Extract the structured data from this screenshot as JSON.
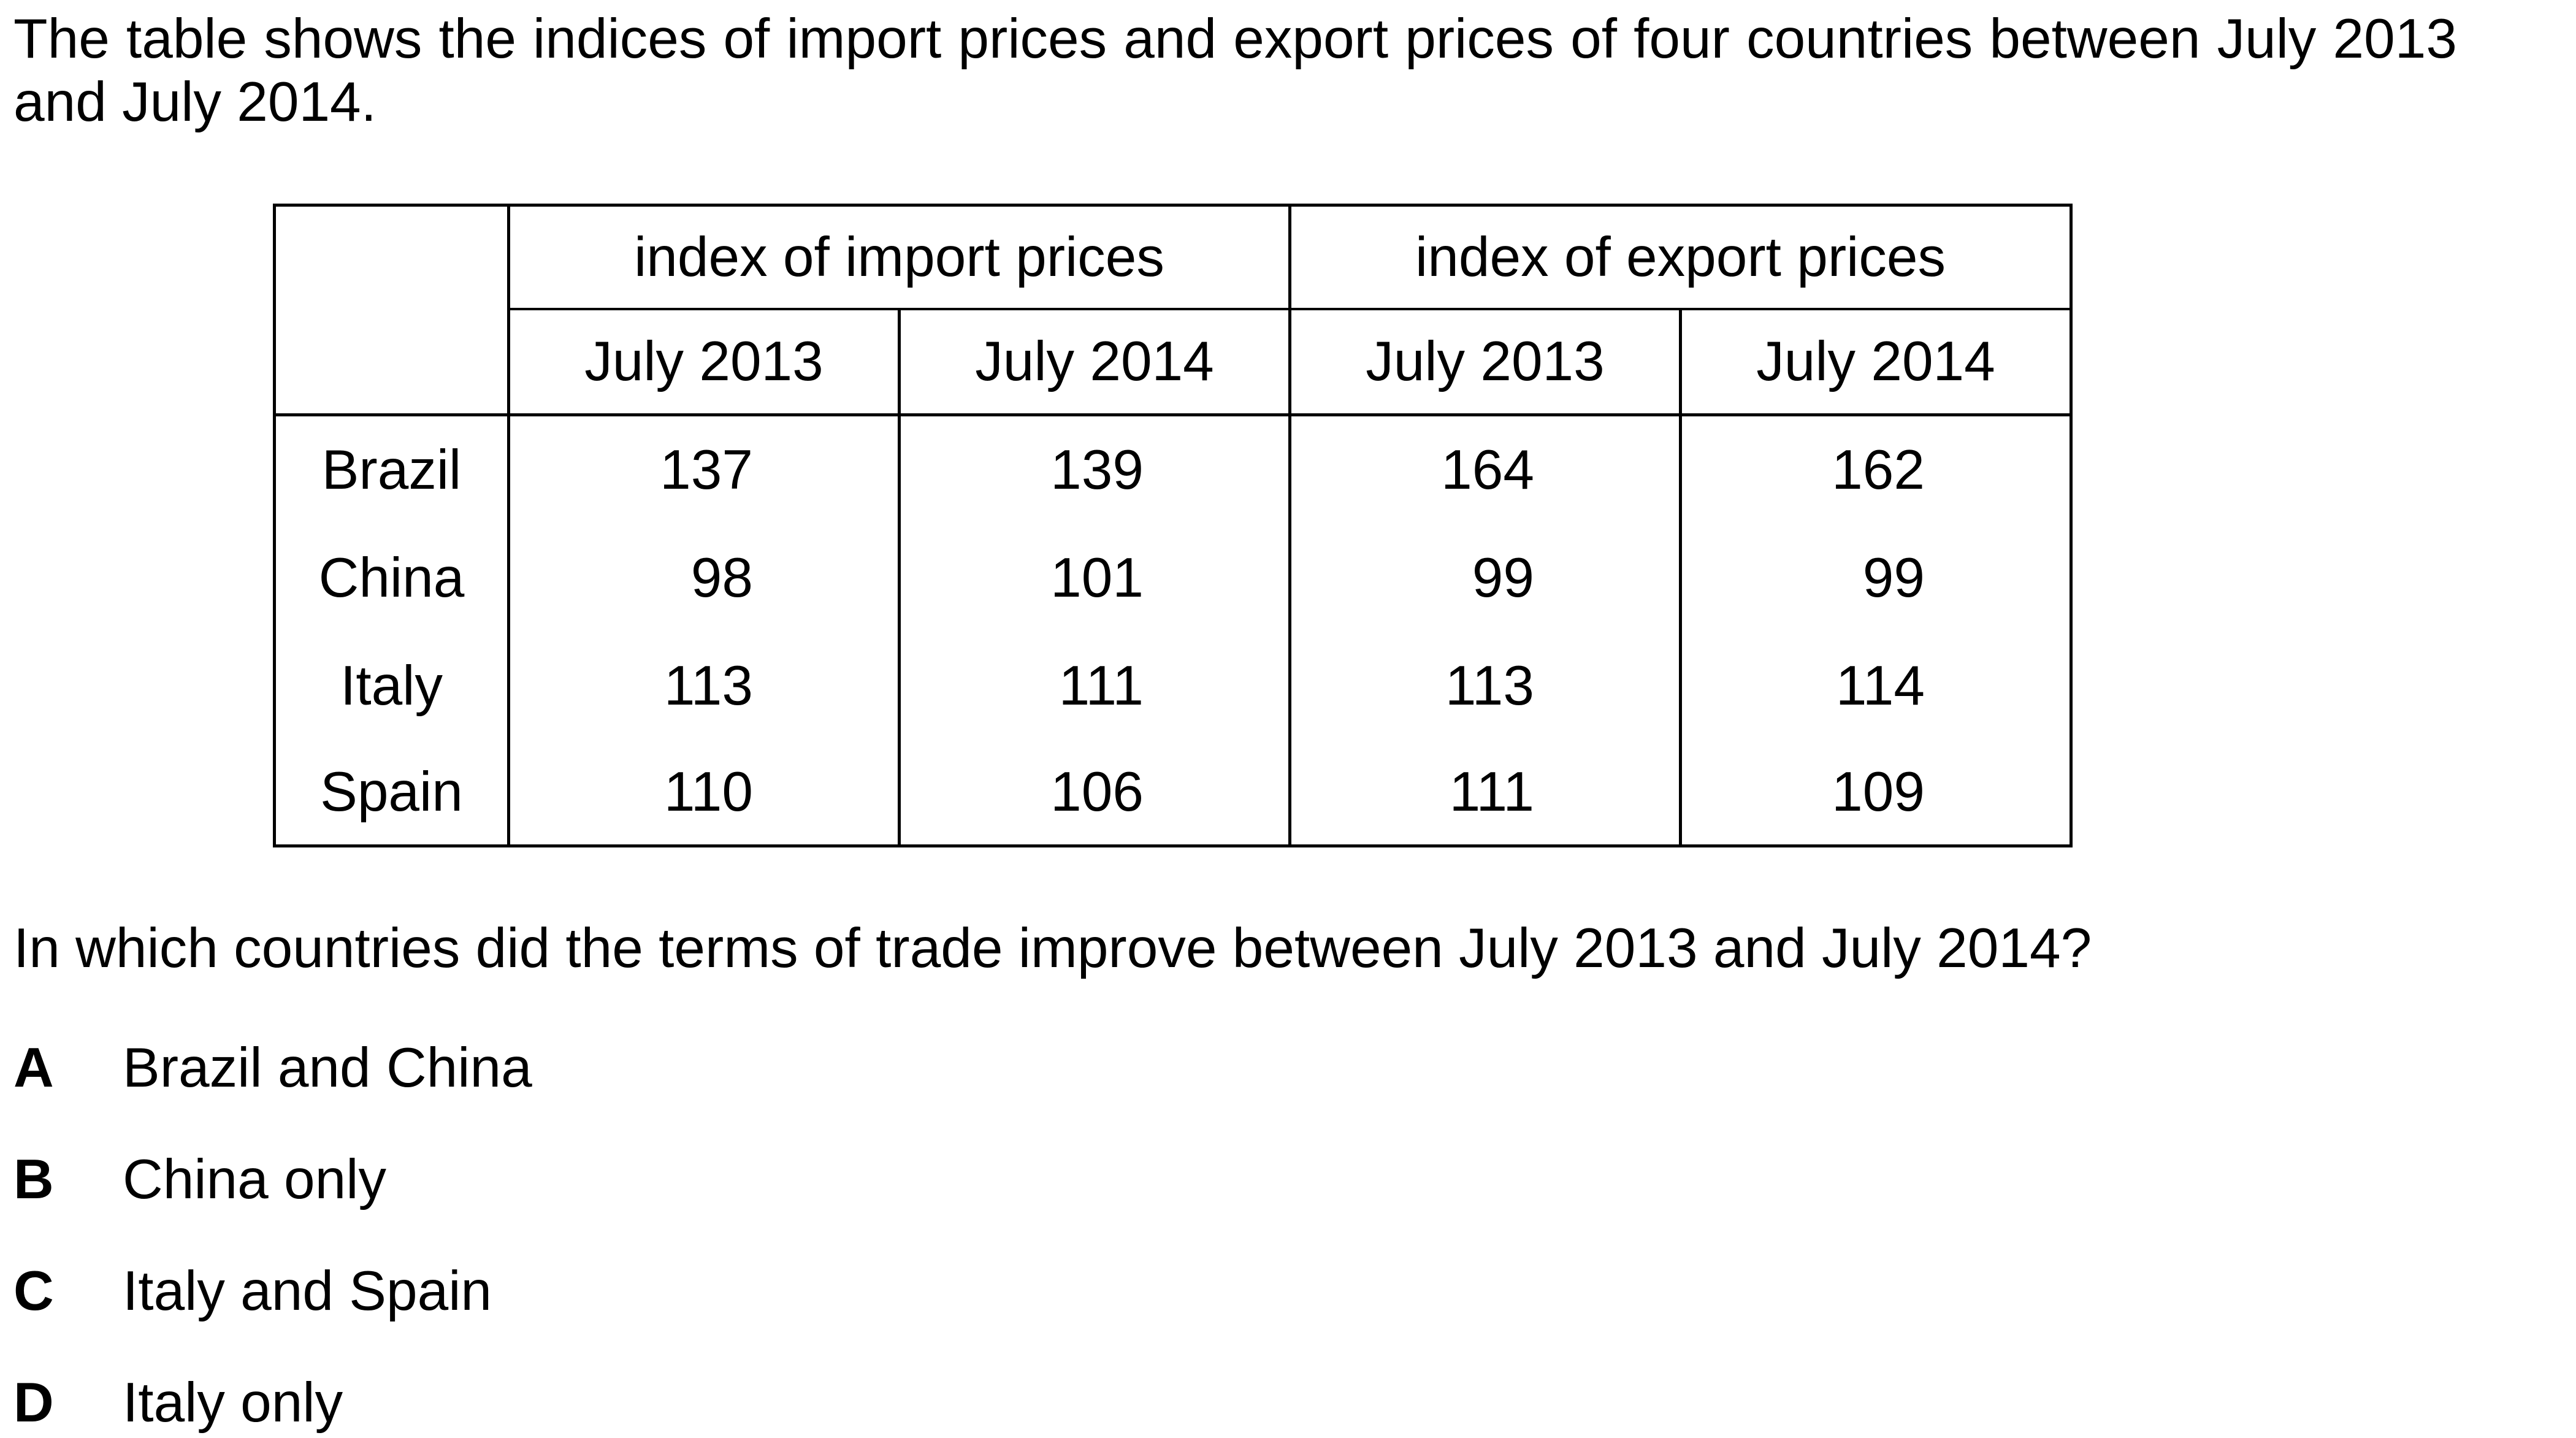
{
  "intro": "The table shows the indices of import prices and export prices of four countries between July 2013 and July 2014.",
  "table": {
    "group_headers": [
      "index of import prices",
      "index of export prices"
    ],
    "sub_headers": [
      "July 2013",
      "July 2014",
      "July 2013",
      "July 2014"
    ],
    "rows": [
      {
        "country": "Brazil",
        "values": [
          "137",
          "139",
          "164",
          "162"
        ]
      },
      {
        "country": "China",
        "values": [
          "98",
          "101",
          "99",
          "99"
        ]
      },
      {
        "country": "Italy",
        "values": [
          "113",
          "111",
          "113",
          "114"
        ]
      },
      {
        "country": "Spain",
        "values": [
          "110",
          "106",
          "111",
          "109"
        ]
      }
    ]
  },
  "question": "In which countries did the terms of trade improve between July 2013 and July 2014?",
  "options": [
    {
      "letter": "A",
      "text": "Brazil and China"
    },
    {
      "letter": "B",
      "text": "China only"
    },
    {
      "letter": "C",
      "text": "Italy and Spain"
    },
    {
      "letter": "D",
      "text": "Italy only"
    }
  ]
}
